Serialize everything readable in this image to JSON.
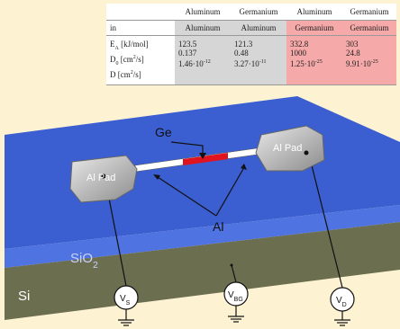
{
  "table": {
    "header": [
      "Aluminum",
      "Germanium",
      "Aluminum",
      "Germanium"
    ],
    "subheader": {
      "label": "in",
      "cells": [
        "Aluminum",
        "Aluminum",
        "Germanium",
        "Germanium"
      ]
    },
    "rows": [
      {
        "label": [
          {
            "text": "E"
          },
          {
            "text": "A",
            "script": "sub"
          },
          {
            "text": " [kJ/mol]"
          }
        ],
        "cells": [
          [
            {
              "text": "123.5"
            }
          ],
          [
            {
              "text": "121.3"
            }
          ],
          [
            {
              "text": "332.8"
            }
          ],
          [
            {
              "text": "303"
            }
          ]
        ]
      },
      {
        "label": [
          {
            "text": "D"
          },
          {
            "text": "0",
            "script": "sub"
          },
          {
            "text": " [cm"
          },
          {
            "text": "2",
            "script": "sup"
          },
          {
            "text": "/s]"
          }
        ],
        "cells": [
          [
            {
              "text": "0.137"
            }
          ],
          [
            {
              "text": "0.48"
            }
          ],
          [
            {
              "text": "1000"
            }
          ],
          [
            {
              "text": "24.8"
            }
          ]
        ]
      },
      {
        "label": [
          {
            "text": "D [cm"
          },
          {
            "text": "2",
            "script": "sup"
          },
          {
            "text": "/s]"
          }
        ],
        "cells": [
          [
            {
              "text": "1.46·10"
            },
            {
              "text": "-12",
              "script": "sup"
            }
          ],
          [
            {
              "text": "3.27·10"
            },
            {
              "text": "-11",
              "script": "sup"
            }
          ],
          [
            {
              "text": "1.25·10"
            },
            {
              "text": "-25",
              "script": "sup"
            }
          ],
          [
            {
              "text": "9.91·10"
            },
            {
              "text": "-25",
              "script": "sup"
            }
          ]
        ]
      }
    ]
  },
  "diagram": {
    "ge_label": "Ge",
    "al_label": "Al",
    "left_pad": "Al Pad",
    "right_pad": "Al Pad",
    "oxide_label": [
      {
        "text": "SiO"
      },
      {
        "text": "2",
        "script": "sub"
      }
    ],
    "substrate_label": "Si",
    "sources": [
      [
        {
          "text": "V"
        },
        {
          "text": "S",
          "script": "sub"
        }
      ],
      [
        {
          "text": "V"
        },
        {
          "text": "BG",
          "script": "sub"
        }
      ],
      [
        {
          "text": "V"
        },
        {
          "text": "D",
          "script": "sub"
        }
      ]
    ]
  }
}
